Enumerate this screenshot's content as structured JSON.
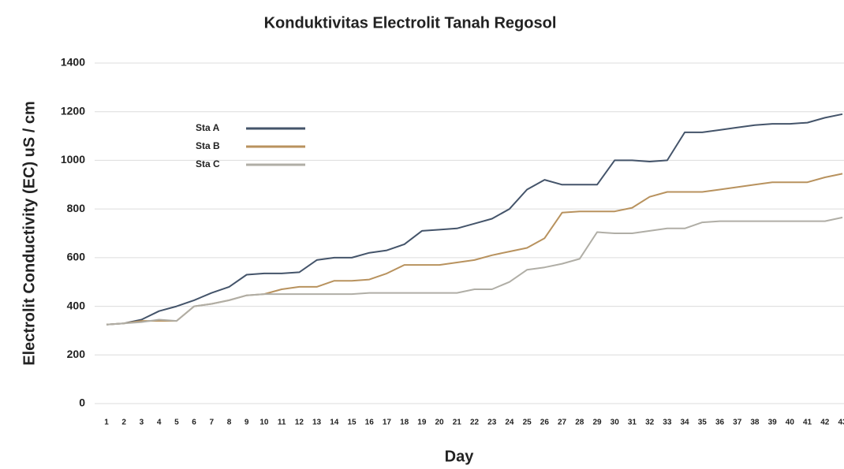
{
  "chart_data": {
    "type": "line",
    "title": "Konduktivitas Electrolit Tanah Regosol",
    "y_label": "Electrolit Conductivity (EC)  uS / cm",
    "x_label": "Day",
    "categories": [
      "1",
      "2",
      "3",
      "4",
      "5",
      "6",
      "7",
      "8",
      "9",
      "10",
      "11",
      "12",
      "13",
      "14",
      "15",
      "16",
      "17",
      "18",
      "19",
      "20",
      "21",
      "22",
      "23",
      "24",
      "25",
      "26",
      "27",
      "28",
      "29",
      "30",
      "31",
      "32",
      "33",
      "34",
      "35",
      "36",
      "37",
      "38",
      "39",
      "40",
      "41",
      "42",
      "43"
    ],
    "series": [
      {
        "name": "Sta A",
        "color": "#44546a",
        "values": [
          325,
          330,
          345,
          380,
          400,
          425,
          455,
          480,
          530,
          535,
          535,
          540,
          590,
          600,
          600,
          620,
          630,
          655,
          710,
          715,
          720,
          740,
          760,
          800,
          880,
          920,
          900,
          900,
          900,
          1000,
          1000,
          995,
          1000,
          1115,
          1115,
          1125,
          1135,
          1145,
          1150,
          1150,
          1155,
          1175,
          1190
        ]
      },
      {
        "name": "Sta B",
        "color": "#b8925e",
        "values": [
          325,
          330,
          340,
          340,
          340,
          400,
          410,
          425,
          445,
          450,
          470,
          480,
          480,
          505,
          505,
          510,
          535,
          570,
          570,
          570,
          580,
          590,
          610,
          625,
          640,
          680,
          785,
          790,
          790,
          790,
          805,
          850,
          870,
          870,
          870,
          880,
          890,
          900,
          910,
          910,
          910,
          930,
          945
        ]
      },
      {
        "name": "Sta C",
        "color": "#b0aea6",
        "values": [
          325,
          330,
          335,
          345,
          340,
          400,
          410,
          425,
          445,
          450,
          450,
          450,
          450,
          450,
          450,
          455,
          455,
          455,
          455,
          455,
          455,
          470,
          470,
          500,
          550,
          560,
          575,
          595,
          705,
          700,
          700,
          710,
          720,
          720,
          745,
          750,
          750,
          750,
          750,
          750,
          750,
          750,
          765
        ]
      }
    ],
    "ylim": [
      0,
      1400
    ],
    "yticks": [
      0,
      200,
      400,
      600,
      800,
      1000,
      1200,
      1400
    ],
    "grid": true
  }
}
